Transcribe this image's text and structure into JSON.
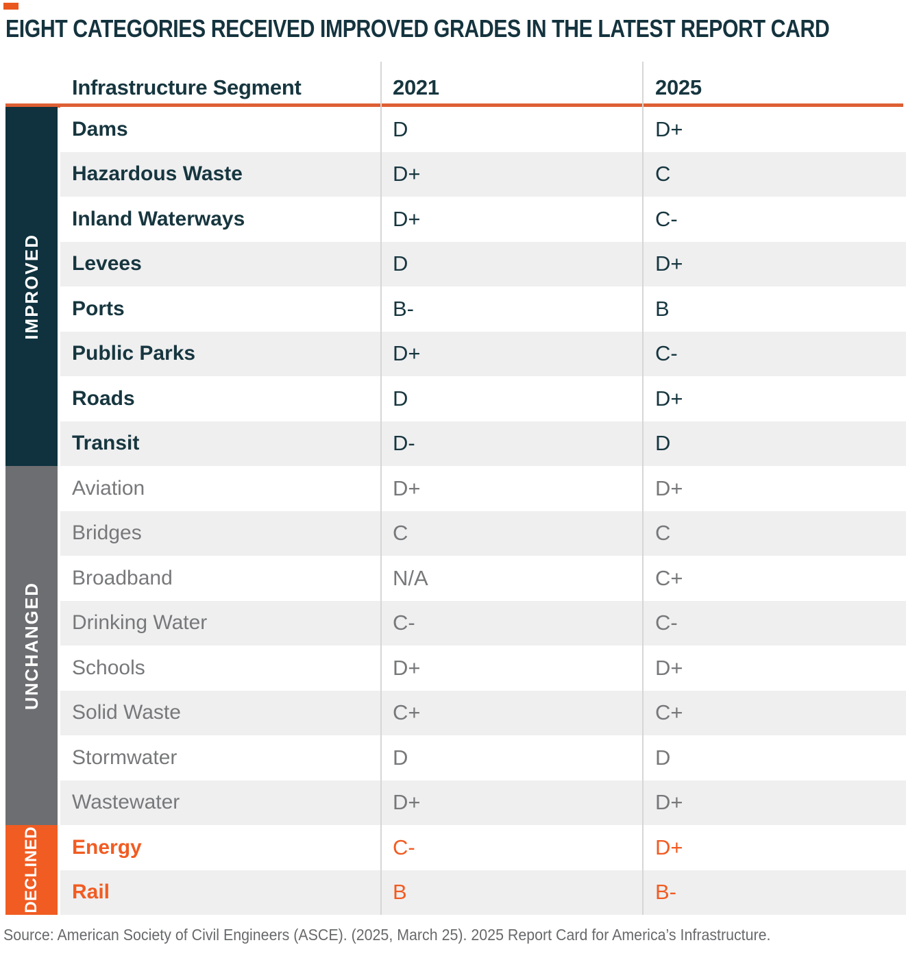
{
  "title": "EIGHT CATEGORIES RECEIVED IMPROVED GRADES IN THE LATEST REPORT CARD",
  "header": {
    "segment": "Infrastructure Segment",
    "year_2021": "2021",
    "year_2025": "2025"
  },
  "sections": [
    {
      "id": "improved",
      "label": "IMPROVED",
      "sidebar_color": "#0f323e",
      "text_color": "#17363f",
      "label_weight": "700",
      "rows": [
        {
          "segment": "Dams",
          "g2021": "D",
          "g2025": "D+"
        },
        {
          "segment": "Hazardous Waste",
          "g2021": "D+",
          "g2025": "C"
        },
        {
          "segment": "Inland Waterways",
          "g2021": "D+",
          "g2025": "C-"
        },
        {
          "segment": "Levees",
          "g2021": "D",
          "g2025": "D+"
        },
        {
          "segment": "Ports",
          "g2021": "B-",
          "g2025": "B"
        },
        {
          "segment": "Public Parks",
          "g2021": "D+",
          "g2025": "C-"
        },
        {
          "segment": "Roads",
          "g2021": "D",
          "g2025": "D+"
        },
        {
          "segment": "Transit",
          "g2021": "D-",
          "g2025": "D"
        }
      ]
    },
    {
      "id": "unchanged",
      "label": "UNCHANGED",
      "sidebar_color": "#6d6e71",
      "text_color": "#77787a",
      "label_weight": "400",
      "rows": [
        {
          "segment": "Aviation",
          "g2021": "D+",
          "g2025": "D+"
        },
        {
          "segment": "Bridges",
          "g2021": "C",
          "g2025": "C"
        },
        {
          "segment": "Broadband",
          "g2021": "N/A",
          "g2025": "C+"
        },
        {
          "segment": "Drinking Water",
          "g2021": "C-",
          "g2025": "C-"
        },
        {
          "segment": "Schools",
          "g2021": "D+",
          "g2025": "D+"
        },
        {
          "segment": "Solid Waste",
          "g2021": "C+",
          "g2025": "C+"
        },
        {
          "segment": "Stormwater",
          "g2021": "D",
          "g2025": "D"
        },
        {
          "segment": "Wastewater",
          "g2021": "D+",
          "g2025": "D+"
        }
      ]
    },
    {
      "id": "declined",
      "label": "DECLINED",
      "sidebar_color": "#f15c22",
      "text_color": "#f15c22",
      "label_weight": "700",
      "rows": [
        {
          "segment": "Energy",
          "g2021": "C-",
          "g2025": "D+"
        },
        {
          "segment": "Rail",
          "g2021": "B",
          "g2025": "B-"
        }
      ]
    }
  ],
  "source": "Source: American Society of Civil Engineers (ASCE). (2025, March 25). 2025 Report Card for America’s Infrastructure.",
  "colors": {
    "title_text": "#14333e",
    "header_text": "#17363f",
    "brand_mark": "#e9571f",
    "orange_rule": "#de5f33",
    "row_stripe": "#efeff0",
    "row_white": "#ffffff",
    "divider": "#d6d6d6",
    "source_text": "#68696b"
  },
  "chart_data": {
    "type": "table",
    "title": "EIGHT CATEGORIES RECEIVED IMPROVED GRADES IN THE LATEST REPORT CARD",
    "columns": [
      "Infrastructure Segment",
      "2021",
      "2025"
    ],
    "groups": [
      {
        "group": "IMPROVED",
        "rows": [
          [
            "Dams",
            "D",
            "D+"
          ],
          [
            "Hazardous Waste",
            "D+",
            "C"
          ],
          [
            "Inland Waterways",
            "D+",
            "C-"
          ],
          [
            "Levees",
            "D",
            "D+"
          ],
          [
            "Ports",
            "B-",
            "B"
          ],
          [
            "Public Parks",
            "D+",
            "C-"
          ],
          [
            "Roads",
            "D",
            "D+"
          ],
          [
            "Transit",
            "D-",
            "D"
          ]
        ]
      },
      {
        "group": "UNCHANGED",
        "rows": [
          [
            "Aviation",
            "D+",
            "D+"
          ],
          [
            "Bridges",
            "C",
            "C"
          ],
          [
            "Broadband",
            "N/A",
            "C+"
          ],
          [
            "Drinking Water",
            "C-",
            "C-"
          ],
          [
            "Schools",
            "D+",
            "D+"
          ],
          [
            "Solid Waste",
            "C+",
            "C+"
          ],
          [
            "Stormwater",
            "D",
            "D"
          ],
          [
            "Wastewater",
            "D+",
            "D+"
          ]
        ]
      },
      {
        "group": "DECLINED",
        "rows": [
          [
            "Energy",
            "C-",
            "D+"
          ],
          [
            "Rail",
            "B",
            "B-"
          ]
        ]
      }
    ],
    "source": "Source: American Society of Civil Engineers (ASCE). (2025, March 25). 2025 Report Card for America’s Infrastructure."
  }
}
